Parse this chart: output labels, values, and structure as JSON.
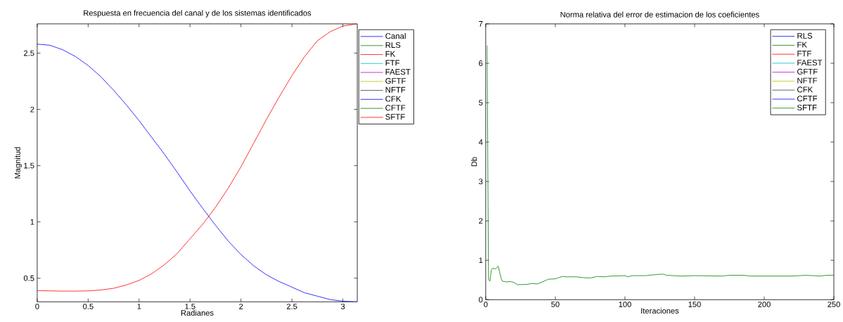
{
  "chart_data": [
    {
      "type": "line",
      "title": "Respuesta en frecuencia del canal y de los sistemas identificados",
      "xlabel": "Radianes",
      "ylabel": "Magnitud",
      "legend": "right",
      "xlim": [
        0,
        3.1416
      ],
      "ylim": [
        0.29,
        2.76
      ],
      "xticks": [
        0,
        0.5,
        1,
        1.5,
        2,
        2.5,
        3
      ],
      "yticks": [
        0.5,
        1,
        1.5,
        2,
        2.5
      ],
      "x": [
        0,
        0.125,
        0.25,
        0.375,
        0.5,
        0.625,
        0.75,
        0.875,
        1,
        1.125,
        1.25,
        1.375,
        1.5,
        1.625,
        1.75,
        1.875,
        2,
        2.125,
        2.25,
        2.375,
        2.5,
        2.625,
        2.75,
        2.875,
        3,
        3.1416
      ],
      "series": [
        {
          "name": "Canal",
          "color": "#0000ff",
          "values": [
            2.58,
            2.57,
            2.53,
            2.47,
            2.39,
            2.29,
            2.17,
            2.04,
            1.9,
            1.75,
            1.6,
            1.44,
            1.275,
            1.12,
            0.97,
            0.83,
            0.71,
            0.61,
            0.53,
            0.47,
            0.42,
            0.37,
            0.34,
            0.31,
            0.295,
            0.29
          ]
        },
        {
          "name": "RLS",
          "color": "#008000",
          "values": [
            null,
            null,
            null,
            null,
            null,
            null,
            null,
            null,
            null,
            null,
            null,
            null,
            null,
            null,
            null,
            null,
            null,
            null,
            null,
            null,
            null,
            null,
            null,
            null,
            null,
            null
          ]
        },
        {
          "name": "FK",
          "color": "#ff0000",
          "values": [
            null,
            null,
            null,
            null,
            null,
            null,
            null,
            null,
            null,
            null,
            null,
            null,
            null,
            null,
            null,
            null,
            null,
            null,
            null,
            null,
            null,
            null,
            null,
            null,
            null,
            null
          ]
        },
        {
          "name": "FTF",
          "color": "#00bfbf",
          "values": [
            null,
            null,
            null,
            null,
            null,
            null,
            null,
            null,
            null,
            null,
            null,
            null,
            null,
            null,
            null,
            null,
            null,
            null,
            null,
            null,
            null,
            null,
            null,
            null,
            null,
            null
          ]
        },
        {
          "name": "FAEST",
          "color": "#bf00bf",
          "values": [
            null,
            null,
            null,
            null,
            null,
            null,
            null,
            null,
            null,
            null,
            null,
            null,
            null,
            null,
            null,
            null,
            null,
            null,
            null,
            null,
            null,
            null,
            null,
            null,
            null,
            null
          ]
        },
        {
          "name": "GFTF",
          "color": "#bfbf00",
          "values": [
            null,
            null,
            null,
            null,
            null,
            null,
            null,
            null,
            null,
            null,
            null,
            null,
            null,
            null,
            null,
            null,
            null,
            null,
            null,
            null,
            null,
            null,
            null,
            null,
            null,
            null
          ]
        },
        {
          "name": "NFTF",
          "color": "#404040",
          "values": [
            null,
            null,
            null,
            null,
            null,
            null,
            null,
            null,
            null,
            null,
            null,
            null,
            null,
            null,
            null,
            null,
            null,
            null,
            null,
            null,
            null,
            null,
            null,
            null,
            null,
            null
          ]
        },
        {
          "name": "CFK",
          "color": "#0000ff",
          "values": [
            null,
            null,
            null,
            null,
            null,
            null,
            null,
            null,
            null,
            null,
            null,
            null,
            null,
            null,
            null,
            null,
            null,
            null,
            null,
            null,
            null,
            null,
            null,
            null,
            null,
            null
          ]
        },
        {
          "name": "CFTF",
          "color": "#008000",
          "values": [
            null,
            null,
            null,
            null,
            null,
            null,
            null,
            null,
            null,
            null,
            null,
            null,
            null,
            null,
            null,
            null,
            null,
            null,
            null,
            null,
            null,
            null,
            null,
            null,
            null,
            null
          ]
        },
        {
          "name": "SFTF",
          "color": "#ff0000",
          "values": [
            0.39,
            0.387,
            0.385,
            0.385,
            0.387,
            0.395,
            0.41,
            0.44,
            0.48,
            0.54,
            0.62,
            0.72,
            0.85,
            0.98,
            1.13,
            1.3,
            1.49,
            1.7,
            1.91,
            2.11,
            2.3,
            2.47,
            2.61,
            2.69,
            2.74,
            2.76
          ]
        }
      ]
    },
    {
      "type": "line",
      "title": "Norma relativa del error de estimacion de los coeficientes",
      "xlabel": "Iteraciones",
      "ylabel": "Db",
      "legend": "top right",
      "xlim": [
        0,
        250
      ],
      "ylim": [
        0,
        7
      ],
      "xticks": [
        0,
        50,
        100,
        150,
        200,
        250
      ],
      "yticks": [
        0,
        1,
        2,
        3,
        4,
        5,
        6,
        7
      ],
      "x": [
        1,
        2,
        3,
        4,
        5,
        7,
        9,
        11,
        12,
        15,
        18,
        20,
        23,
        30,
        33,
        37,
        40,
        45,
        50,
        55,
        58,
        65,
        70,
        75,
        80,
        85,
        90,
        100,
        102,
        105,
        115,
        120,
        127,
        130,
        140,
        150,
        170,
        175,
        185,
        190,
        220,
        230,
        240,
        245,
        250
      ],
      "series": [
        {
          "name": "RLS",
          "color": "#0000ff",
          "values": [
            null,
            null,
            null,
            null,
            null,
            null,
            null,
            null,
            null,
            null,
            null,
            null,
            null,
            null,
            null,
            null,
            null,
            null,
            null,
            null,
            null,
            null,
            null,
            null,
            null,
            null,
            null,
            null,
            null,
            null,
            null,
            null,
            null,
            null,
            null,
            null,
            null,
            null,
            null,
            null,
            null,
            null,
            null,
            null,
            null
          ]
        },
        {
          "name": "FK",
          "color": "#008000",
          "values": [
            null,
            null,
            null,
            null,
            null,
            null,
            null,
            null,
            null,
            null,
            null,
            null,
            null,
            null,
            null,
            null,
            null,
            null,
            null,
            null,
            null,
            null,
            null,
            null,
            null,
            null,
            null,
            null,
            null,
            null,
            null,
            null,
            null,
            null,
            null,
            null,
            null,
            null,
            null,
            null,
            null,
            null,
            null,
            null,
            null
          ]
        },
        {
          "name": "FTF",
          "color": "#ff0000",
          "values": [
            null,
            null,
            null,
            null,
            null,
            null,
            null,
            null,
            null,
            null,
            null,
            null,
            null,
            null,
            null,
            null,
            null,
            null,
            null,
            null,
            null,
            null,
            null,
            null,
            null,
            null,
            null,
            null,
            null,
            null,
            null,
            null,
            null,
            null,
            null,
            null,
            null,
            null,
            null,
            null,
            null,
            null,
            null,
            null,
            null
          ]
        },
        {
          "name": "FAEST",
          "color": "#00bfbf",
          "values": [
            null,
            null,
            null,
            null,
            null,
            null,
            null,
            null,
            null,
            null,
            null,
            null,
            null,
            null,
            null,
            null,
            null,
            null,
            null,
            null,
            null,
            null,
            null,
            null,
            null,
            null,
            null,
            null,
            null,
            null,
            null,
            null,
            null,
            null,
            null,
            null,
            null,
            null,
            null,
            null,
            null,
            null,
            null,
            null,
            null
          ]
        },
        {
          "name": "GFTF",
          "color": "#bf00bf",
          "values": [
            null,
            null,
            null,
            null,
            null,
            null,
            null,
            null,
            null,
            null,
            null,
            null,
            null,
            null,
            null,
            null,
            null,
            null,
            null,
            null,
            null,
            null,
            null,
            null,
            null,
            null,
            null,
            null,
            null,
            null,
            null,
            null,
            null,
            null,
            null,
            null,
            null,
            null,
            null,
            null,
            null,
            null,
            null,
            null,
            null
          ]
        },
        {
          "name": "NFTF",
          "color": "#bfbf00",
          "values": [
            null,
            null,
            null,
            null,
            null,
            null,
            null,
            null,
            null,
            null,
            null,
            null,
            null,
            null,
            null,
            null,
            null,
            null,
            null,
            null,
            null,
            null,
            null,
            null,
            null,
            null,
            null,
            null,
            null,
            null,
            null,
            null,
            null,
            null,
            null,
            null,
            null,
            null,
            null,
            null,
            null,
            null,
            null,
            null,
            null
          ]
        },
        {
          "name": "CFK",
          "color": "#404040",
          "values": [
            null,
            null,
            null,
            null,
            null,
            null,
            null,
            null,
            null,
            null,
            null,
            null,
            null,
            null,
            null,
            null,
            null,
            null,
            null,
            null,
            null,
            null,
            null,
            null,
            null,
            null,
            null,
            null,
            null,
            null,
            null,
            null,
            null,
            null,
            null,
            null,
            null,
            null,
            null,
            null,
            null,
            null,
            null,
            null,
            null
          ]
        },
        {
          "name": "CFTF",
          "color": "#0000ff",
          "values": [
            null,
            null,
            null,
            null,
            null,
            null,
            null,
            null,
            null,
            null,
            null,
            null,
            null,
            null,
            null,
            null,
            null,
            null,
            null,
            null,
            null,
            null,
            null,
            null,
            null,
            null,
            null,
            null,
            null,
            null,
            null,
            null,
            null,
            null,
            null,
            null,
            null,
            null,
            null,
            null,
            null,
            null,
            null,
            null,
            null
          ]
        },
        {
          "name": "SFTF",
          "color": "#008000",
          "values": [
            6.45,
            0.52,
            0.47,
            0.75,
            0.8,
            0.78,
            0.85,
            0.55,
            0.47,
            0.45,
            0.46,
            0.44,
            0.38,
            0.39,
            0.41,
            0.4,
            0.44,
            0.52,
            0.53,
            0.59,
            0.58,
            0.58,
            0.56,
            0.55,
            0.59,
            0.58,
            0.6,
            0.61,
            0.58,
            0.61,
            0.61,
            0.63,
            0.65,
            0.62,
            0.6,
            0.61,
            0.6,
            0.62,
            0.62,
            0.6,
            0.6,
            0.62,
            0.6,
            0.62,
            0.62
          ]
        }
      ]
    }
  ]
}
